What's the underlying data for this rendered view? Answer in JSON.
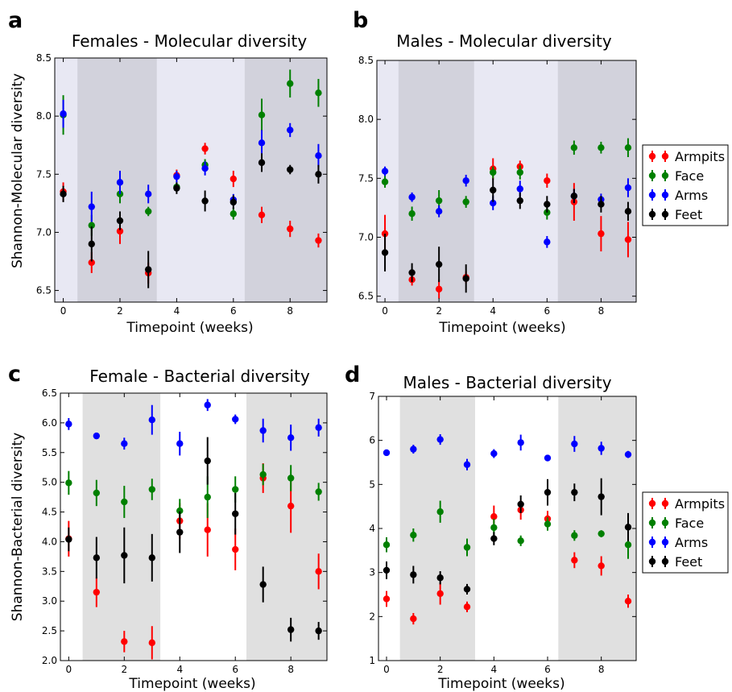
{
  "legend": {
    "entries": [
      {
        "label": "Armpits",
        "color": "#ff0000"
      },
      {
        "label": "Face",
        "color": "#008000"
      },
      {
        "label": "Arms",
        "color": "#0000ff"
      },
      {
        "label": "Feet",
        "color": "#000000"
      }
    ]
  },
  "chart_data": [
    {
      "panel": "a",
      "type": "scatter",
      "title": "Females - Molecular diversity",
      "xlabel": "Timepoint (weeks)",
      "ylabel": "Shannon-Molecular diversity",
      "xlim": [
        -0.3,
        9.3
      ],
      "ylim": [
        6.4,
        8.5
      ],
      "xticks": [
        0,
        2,
        4,
        6,
        8
      ],
      "yticks": [
        6.5,
        7.0,
        7.5,
        8.0,
        8.5
      ],
      "ytick_labels": [
        "6.5",
        "7.0",
        "7.5",
        "8.0",
        "8.5"
      ],
      "background": "#e8e8f3",
      "shaded": [
        [
          0.5,
          3.3
        ],
        [
          6.4,
          9.3
        ]
      ],
      "shade_color": "#d2d2dc",
      "x": [
        0,
        1,
        2,
        3,
        4,
        5,
        6,
        7,
        8,
        9
      ],
      "series": [
        {
          "name": "Armpits",
          "color": "#ff0000",
          "values": [
            7.35,
            6.74,
            7.01,
            6.65,
            7.49,
            7.72,
            7.46,
            7.15,
            7.03,
            6.93
          ],
          "errors": [
            0.08,
            0.09,
            0.11,
            0.09,
            0.05,
            0.05,
            0.07,
            0.07,
            0.07,
            0.06
          ]
        },
        {
          "name": "Face",
          "color": "#008000",
          "values": [
            8.01,
            7.06,
            7.33,
            7.18,
            7.39,
            7.58,
            7.16,
            8.01,
            8.28,
            8.2
          ],
          "errors": [
            0.17,
            0.09,
            0.08,
            0.04,
            0.04,
            0.05,
            0.05,
            0.14,
            0.12,
            0.12
          ]
        },
        {
          "name": "Arms",
          "color": "#0000ff",
          "values": [
            8.02,
            7.22,
            7.43,
            7.33,
            7.48,
            7.55,
            7.28,
            7.77,
            7.88,
            7.66
          ],
          "errors": [
            0.12,
            0.13,
            0.1,
            0.08,
            0.05,
            0.06,
            0.05,
            0.11,
            0.06,
            0.1
          ]
        },
        {
          "name": "Feet",
          "color": "#000000",
          "values": [
            7.33,
            6.9,
            7.1,
            6.68,
            7.38,
            7.27,
            7.26,
            7.6,
            7.54,
            7.5
          ],
          "errors": [
            0.07,
            0.15,
            0.08,
            0.16,
            0.05,
            0.09,
            0.06,
            0.08,
            0.04,
            0.08
          ]
        }
      ]
    },
    {
      "panel": "b",
      "type": "scatter",
      "title": "Males - Molecular diversity",
      "xlabel": "Timepoint (weeks)",
      "ylabel": "",
      "xlim": [
        -0.3,
        9.3
      ],
      "ylim": [
        6.45,
        8.5
      ],
      "xticks": [
        0,
        2,
        4,
        6,
        8
      ],
      "yticks": [
        6.5,
        7.0,
        7.5,
        8.0,
        8.5
      ],
      "ytick_labels": [
        "6.5",
        "7.0",
        "7.5",
        "8.0",
        "8.5"
      ],
      "background": "#e8e8f3",
      "shaded": [
        [
          0.5,
          3.3
        ],
        [
          6.4,
          9.3
        ]
      ],
      "shade_color": "#d2d2dc",
      "x": [
        0,
        1,
        2,
        3,
        4,
        5,
        6,
        7,
        8,
        9
      ],
      "series": [
        {
          "name": "Armpits",
          "color": "#ff0000",
          "values": [
            7.03,
            6.64,
            6.56,
            6.66,
            7.58,
            7.6,
            7.48,
            7.3,
            7.03,
            6.98
          ],
          "errors": [
            0.16,
            0.05,
            0.08,
            0.05,
            0.09,
            0.05,
            0.06,
            0.16,
            0.15,
            0.15
          ]
        },
        {
          "name": "Face",
          "color": "#008000",
          "values": [
            7.47,
            7.2,
            7.31,
            7.3,
            7.55,
            7.55,
            7.21,
            7.76,
            7.76,
            7.76
          ],
          "errors": [
            0.05,
            0.06,
            0.09,
            0.05,
            0.05,
            0.06,
            0.06,
            0.06,
            0.05,
            0.08
          ]
        },
        {
          "name": "Arms",
          "color": "#0000ff",
          "values": [
            7.56,
            7.34,
            7.22,
            7.48,
            7.29,
            7.41,
            6.96,
            7.35,
            7.32,
            7.42
          ],
          "errors": [
            0.04,
            0.04,
            0.05,
            0.05,
            0.06,
            0.07,
            0.05,
            0.06,
            0.05,
            0.08
          ]
        },
        {
          "name": "Feet",
          "color": "#000000",
          "values": [
            6.87,
            6.7,
            6.77,
            6.65,
            7.4,
            7.31,
            7.28,
            7.35,
            7.28,
            7.22
          ],
          "errors": [
            0.16,
            0.08,
            0.15,
            0.12,
            0.1,
            0.07,
            0.07,
            0.06,
            0.07,
            0.08
          ]
        }
      ]
    },
    {
      "panel": "c",
      "type": "scatter",
      "title": "Female - Bacterial diversity",
      "xlabel": "Timepoint (weeks)",
      "ylabel": "Shannon-Bacterial diversity",
      "xlim": [
        -0.3,
        9.3
      ],
      "ylim": [
        2.0,
        6.5
      ],
      "xticks": [
        0,
        2,
        4,
        6,
        8
      ],
      "yticks": [
        2.0,
        2.5,
        3.0,
        3.5,
        4.0,
        4.5,
        5.0,
        5.5,
        6.0,
        6.5
      ],
      "ytick_labels": [
        "2.0",
        "2.5",
        "3.0",
        "3.5",
        "4.0",
        "4.5",
        "5.0",
        "5.5",
        "6.0",
        "6.5"
      ],
      "background": "#ffffff",
      "shaded": [
        [
          0.5,
          3.3
        ],
        [
          6.4,
          9.3
        ]
      ],
      "shade_color": "#e0e0e0",
      "x": [
        0,
        1,
        2,
        3,
        4,
        5,
        6,
        7,
        8,
        9
      ],
      "series": [
        {
          "name": "Armpits",
          "color": "#ff0000",
          "values": [
            4.05,
            3.15,
            2.32,
            2.3,
            4.35,
            4.2,
            3.87,
            5.07,
            4.6,
            3.5
          ],
          "errors": [
            0.3,
            0.25,
            0.18,
            0.28,
            0.3,
            0.45,
            0.35,
            0.25,
            0.45,
            0.3
          ]
        },
        {
          "name": "Face",
          "color": "#008000",
          "values": [
            4.99,
            4.82,
            4.67,
            4.88,
            4.52,
            4.75,
            4.88,
            5.13,
            5.07,
            4.84
          ],
          "errors": [
            0.2,
            0.22,
            0.27,
            0.18,
            0.2,
            0.35,
            0.22,
            0.18,
            0.22,
            0.15
          ]
        },
        {
          "name": "Arms",
          "color": "#0000ff",
          "values": [
            5.98,
            5.78,
            5.65,
            6.05,
            5.65,
            6.3,
            6.06,
            5.87,
            5.75,
            5.92
          ],
          "errors": [
            0.1,
            0.03,
            0.1,
            0.25,
            0.2,
            0.1,
            0.08,
            0.2,
            0.22,
            0.15
          ]
        },
        {
          "name": "Feet",
          "color": "#000000",
          "values": [
            4.04,
            3.73,
            3.77,
            3.73,
            4.16,
            5.36,
            4.47,
            3.28,
            2.52,
            2.5
          ],
          "errors": [
            0.2,
            0.35,
            0.47,
            0.4,
            0.35,
            0.4,
            0.35,
            0.3,
            0.2,
            0.15
          ]
        }
      ]
    },
    {
      "panel": "d",
      "type": "scatter",
      "title": "Males - Bacterial diversity",
      "xlabel": "Timepoint (weeks)",
      "ylabel": "",
      "xlim": [
        -0.3,
        9.3
      ],
      "ylim": [
        1,
        7
      ],
      "xticks": [
        0,
        2,
        4,
        6,
        8
      ],
      "yticks": [
        1,
        2,
        3,
        4,
        5,
        6,
        7
      ],
      "ytick_labels": [
        "1",
        "2",
        "3",
        "4",
        "5",
        "6",
        "7"
      ],
      "background": "#ffffff",
      "shaded": [
        [
          0.5,
          3.3
        ],
        [
          6.4,
          9.3
        ]
      ],
      "shade_color": "#e0e0e0",
      "x": [
        0,
        1,
        2,
        3,
        4,
        5,
        6,
        7,
        8,
        9
      ],
      "series": [
        {
          "name": "Armpits",
          "color": "#ff0000",
          "values": [
            2.4,
            1.95,
            2.52,
            2.22,
            4.27,
            4.42,
            4.22,
            3.28,
            3.15,
            2.35
          ],
          "errors": [
            0.18,
            0.13,
            0.25,
            0.12,
            0.25,
            0.22,
            0.18,
            0.18,
            0.22,
            0.15
          ]
        },
        {
          "name": "Face",
          "color": "#008000",
          "values": [
            3.63,
            3.85,
            4.38,
            3.57,
            4.02,
            3.72,
            4.1,
            3.84,
            3.88,
            3.63
          ],
          "errors": [
            0.17,
            0.15,
            0.25,
            0.2,
            0.2,
            0.12,
            0.15,
            0.12,
            0.08,
            0.32
          ]
        },
        {
          "name": "Arms",
          "color": "#0000ff",
          "values": [
            5.72,
            5.8,
            6.02,
            5.45,
            5.7,
            5.95,
            5.6,
            5.92,
            5.82,
            5.68
          ],
          "errors": [
            0.05,
            0.1,
            0.12,
            0.13,
            0.1,
            0.18,
            0.05,
            0.18,
            0.15,
            0.08
          ]
        },
        {
          "name": "Feet",
          "color": "#000000",
          "values": [
            3.05,
            2.95,
            2.88,
            2.62,
            3.77,
            4.55,
            4.82,
            4.82,
            4.72,
            4.03
          ],
          "errors": [
            0.2,
            0.2,
            0.15,
            0.12,
            0.15,
            0.2,
            0.3,
            0.2,
            0.42,
            0.32
          ]
        }
      ]
    }
  ]
}
